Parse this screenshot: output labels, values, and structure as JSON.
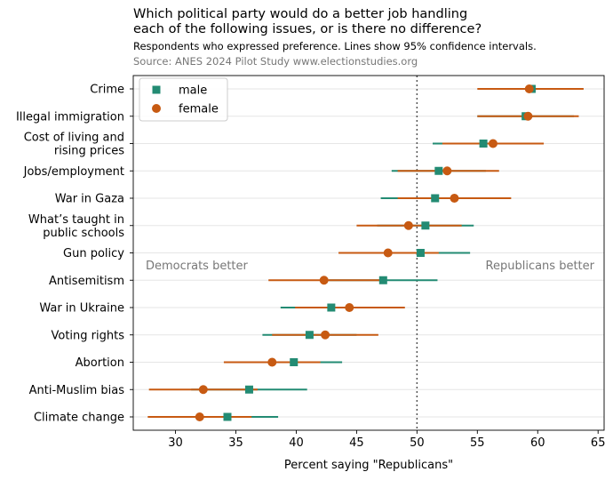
{
  "chart_data": {
    "type": "scatter",
    "title_lines": [
      "Which political party would do a better job handling",
      "each of the following issues, or is there no difference?"
    ],
    "subtitle": "Respondents who expressed preference. Lines show 95% confidence intervals.",
    "source": "Source: ANES 2024 Pilot Study www.electionstudies.org",
    "xlabel": "Percent saying \"Republicans\"",
    "xlim": [
      26.5,
      65.5
    ],
    "xticks": [
      30,
      35,
      40,
      45,
      50,
      55,
      60,
      65
    ],
    "reference_line": 50,
    "grid": "horizontal",
    "legend_position": "top-left",
    "annotations": {
      "left": "Democrats better",
      "right": "Republicans better"
    },
    "categories": [
      [
        "Crime"
      ],
      [
        "Illegal immigration"
      ],
      [
        "Cost of living and",
        "rising prices"
      ],
      [
        "Jobs/employment"
      ],
      [
        "War in Gaza"
      ],
      [
        "What’s taught in",
        "public schools"
      ],
      [
        "Gun policy"
      ],
      [
        "Antisemitism"
      ],
      [
        "War in Ukraine"
      ],
      [
        "Voting rights"
      ],
      [
        "Abortion"
      ],
      [
        "Anti-Muslim bias"
      ],
      [
        "Climate change"
      ]
    ],
    "series": [
      {
        "name": "male",
        "color": "#238b73",
        "marker": "square",
        "values": [
          59.5,
          59.0,
          55.5,
          51.8,
          51.5,
          50.7,
          50.3,
          47.2,
          42.9,
          41.1,
          39.8,
          36.1,
          34.3
        ],
        "ci_low": [
          55.3,
          55.0,
          51.3,
          47.9,
          47.0,
          46.7,
          46.2,
          42.7,
          38.7,
          37.2,
          35.8,
          31.3,
          30.1
        ],
        "ci_high": [
          63.7,
          63.0,
          59.7,
          55.7,
          56.0,
          54.7,
          54.4,
          51.7,
          47.1,
          45.0,
          43.8,
          40.9,
          38.5
        ]
      },
      {
        "name": "female",
        "color": "#c75a12",
        "marker": "circle",
        "values": [
          59.3,
          59.2,
          56.3,
          52.5,
          53.1,
          49.3,
          47.6,
          42.3,
          44.4,
          42.4,
          38.0,
          32.3,
          32.0
        ],
        "ci_low": [
          55.0,
          55.0,
          52.1,
          48.4,
          48.4,
          45.0,
          43.5,
          37.7,
          39.9,
          38.0,
          34.0,
          27.8,
          27.7
        ],
        "ci_high": [
          63.8,
          63.4,
          60.5,
          56.8,
          57.8,
          53.7,
          51.8,
          46.9,
          49.0,
          46.8,
          42.0,
          36.8,
          36.3
        ]
      }
    ]
  }
}
